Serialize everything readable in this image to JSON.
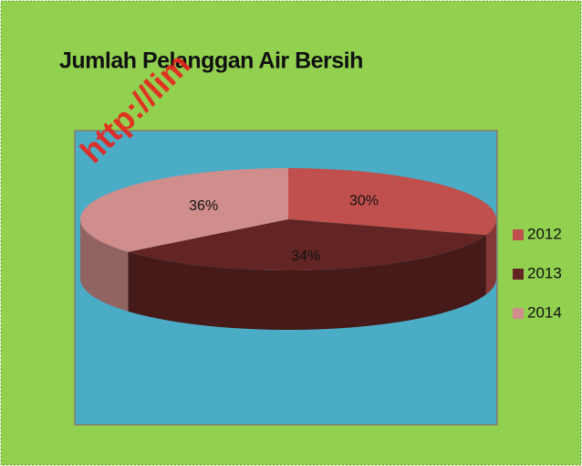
{
  "chart_data": {
    "type": "pie3d",
    "title": "Jumlah Pelanggan Air Bersih",
    "categories": [
      "2012",
      "2013",
      "2014"
    ],
    "values": [
      30,
      34,
      36
    ],
    "value_labels": [
      "30%",
      "34%",
      "36%"
    ],
    "colors": [
      "#c0504d",
      "#632523",
      "#cf8d8b"
    ],
    "legend": "right"
  },
  "watermark": "http://lim"
}
